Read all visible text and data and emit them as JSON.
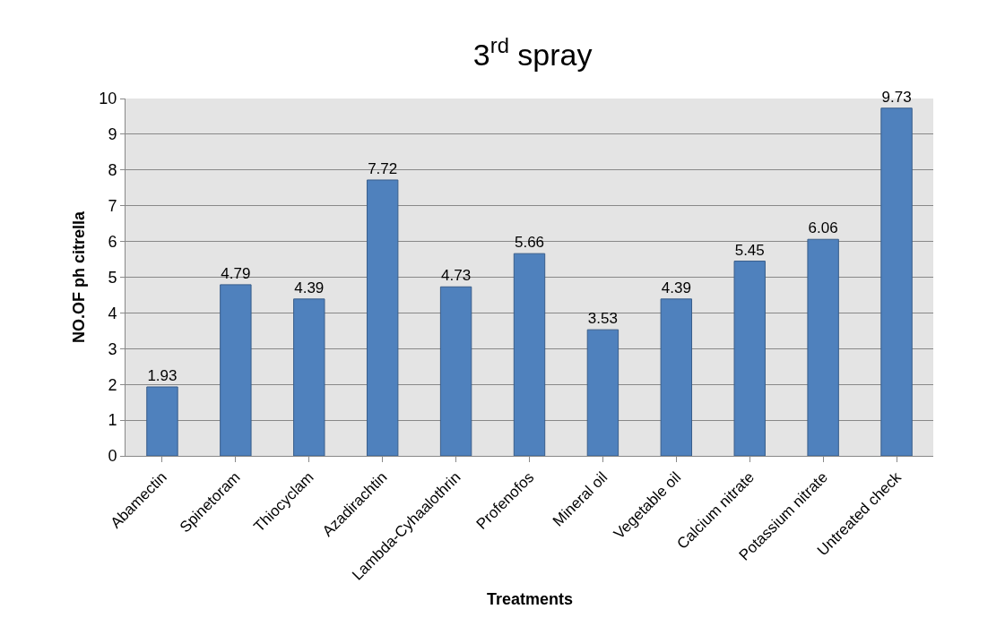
{
  "chart_data": {
    "type": "bar",
    "title": "3$^{rd}$ spray",
    "xlabel": "Treatments",
    "ylabel": "NO.OF ph citrella",
    "categories": [
      "Abamectin",
      "Spinetoram",
      "Thiocyclam",
      "Azadirachtin",
      "Lambda-Cyhaalothrin",
      "Profenofos",
      "Mineral oil",
      "Vegetable oil",
      "Calcium nitrate",
      "Potassium nitrate",
      "Untreated check"
    ],
    "values": [
      1.93,
      4.79,
      4.39,
      7.72,
      4.73,
      5.66,
      3.53,
      4.39,
      5.45,
      6.06,
      9.73
    ],
    "color": "#4f81bd",
    "ylim": [
      0,
      10
    ],
    "yticks": [
      0,
      1,
      2,
      3,
      4,
      5,
      6,
      7,
      8,
      9,
      10
    ],
    "grid": "y",
    "data_labels": true,
    "legend": false
  }
}
